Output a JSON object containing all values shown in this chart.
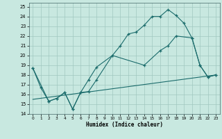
{
  "xlabel": "Humidex (Indice chaleur)",
  "xlim": [
    -0.5,
    23.5
  ],
  "ylim": [
    14,
    25.4
  ],
  "xticks": [
    0,
    1,
    2,
    3,
    4,
    5,
    6,
    7,
    8,
    9,
    10,
    11,
    12,
    13,
    14,
    15,
    16,
    17,
    18,
    19,
    20,
    21,
    22,
    23
  ],
  "yticks": [
    14,
    15,
    16,
    17,
    18,
    19,
    20,
    21,
    22,
    23,
    24,
    25
  ],
  "bg_color": "#c8e8e0",
  "grid_color": "#a0c8c0",
  "line_color": "#1a6b6b",
  "line1_x": [
    0,
    1,
    2,
    3,
    4,
    5,
    6,
    7,
    8,
    10,
    11,
    12,
    13,
    14,
    15,
    16,
    17,
    18,
    19,
    20,
    21,
    22,
    23
  ],
  "line1_y": [
    18.7,
    16.7,
    15.3,
    15.6,
    16.2,
    14.5,
    16.2,
    17.5,
    18.8,
    20.0,
    21.0,
    22.2,
    22.4,
    23.1,
    24.0,
    24.0,
    24.7,
    24.1,
    23.3,
    21.8,
    19.0,
    17.8,
    18.0
  ],
  "line2_x": [
    0,
    2,
    3,
    4,
    5,
    6,
    7,
    8,
    10,
    14,
    16,
    17,
    18,
    20,
    21,
    22,
    23
  ],
  "line2_y": [
    18.7,
    15.3,
    15.6,
    16.2,
    14.5,
    16.2,
    16.3,
    17.5,
    20.0,
    19.0,
    20.5,
    21.0,
    22.0,
    21.8,
    19.0,
    17.8,
    18.0
  ],
  "line3_x": [
    0,
    23
  ],
  "line3_y": [
    15.5,
    18.0
  ]
}
